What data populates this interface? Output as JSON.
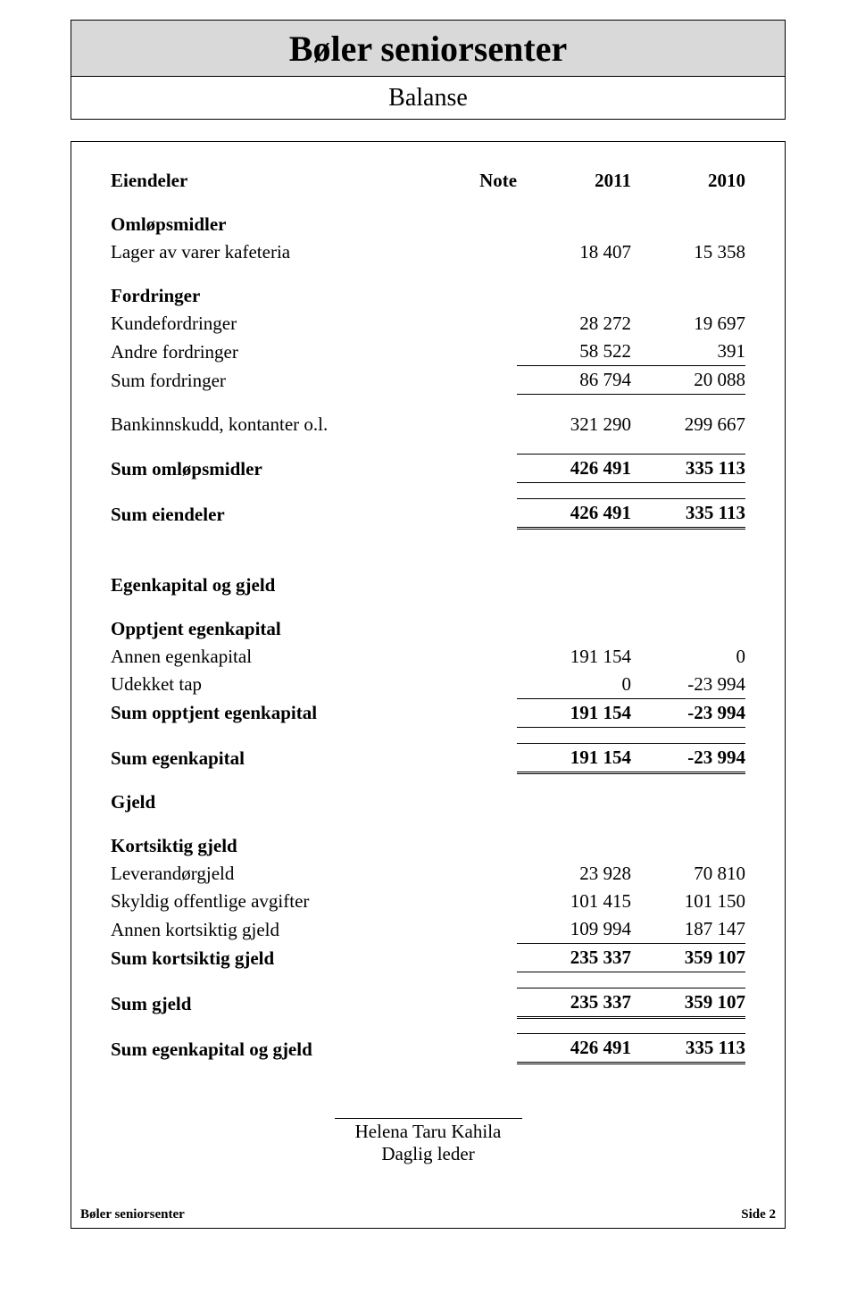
{
  "header": {
    "title": "Bøler seniorsenter",
    "subtitle": "Balanse"
  },
  "columns": {
    "label_eiendeler": "Eiendeler",
    "note": "Note",
    "year_a": "2011",
    "year_b": "2010"
  },
  "assets": {
    "omlopsmidler_header": "Omløpsmidler",
    "lager": {
      "label": "Lager av varer kafeteria",
      "a": "18 407",
      "b": "15 358"
    },
    "fordringer_header": "Fordringer",
    "kundefordringer": {
      "label": "Kundefordringer",
      "a": "28 272",
      "b": "19 697"
    },
    "andre_fordringer": {
      "label": "Andre fordringer",
      "a": "58 522",
      "b": "391"
    },
    "sum_fordringer": {
      "label": "Sum fordringer",
      "a": "86 794",
      "b": "20 088"
    },
    "bankinnskudd": {
      "label": "Bankinnskudd, kontanter o.l.",
      "a": "321 290",
      "b": "299 667"
    },
    "sum_omlopsmidler": {
      "label": "Sum omløpsmidler",
      "a": "426 491",
      "b": "335 113"
    },
    "sum_eiendeler": {
      "label": "Sum eiendeler",
      "a": "426 491",
      "b": "335 113"
    }
  },
  "equity_liab": {
    "header": "Egenkapital og gjeld",
    "opptjent_header": "Opptjent egenkapital",
    "annen_ek": {
      "label": "Annen egenkapital",
      "a": "191 154",
      "b": "0"
    },
    "udekket_tap": {
      "label": "Udekket tap",
      "a": "0",
      "b": "-23 994"
    },
    "sum_opptjent": {
      "label": "Sum opptjent egenkapital",
      "a": "191 154",
      "b": "-23 994"
    },
    "sum_ek": {
      "label": "Sum egenkapital",
      "a": "191 154",
      "b": "-23 994"
    },
    "gjeld_header": "Gjeld",
    "kortsiktig_header": "Kortsiktig gjeld",
    "leverandor": {
      "label": "Leverandørgjeld",
      "a": "23 928",
      "b": "70 810"
    },
    "skyldig_avgifter": {
      "label": "Skyldig offentlige avgifter",
      "a": "101 415",
      "b": "101 150"
    },
    "annen_kortsiktig": {
      "label": "Annen kortsiktig gjeld",
      "a": "109 994",
      "b": "187 147"
    },
    "sum_kortsiktig": {
      "label": "Sum kortsiktig gjeld",
      "a": "235 337",
      "b": "359 107"
    },
    "sum_gjeld": {
      "label": "Sum gjeld",
      "a": "235 337",
      "b": "359 107"
    },
    "sum_ek_gjeld": {
      "label": "Sum egenkapital og gjeld",
      "a": "426 491",
      "b": "335 113"
    }
  },
  "signature": {
    "name": "Helena Taru Kahila",
    "role": "Daglig leder"
  },
  "footer": {
    "left": "Bøler seniorsenter",
    "right": "Side 2"
  }
}
